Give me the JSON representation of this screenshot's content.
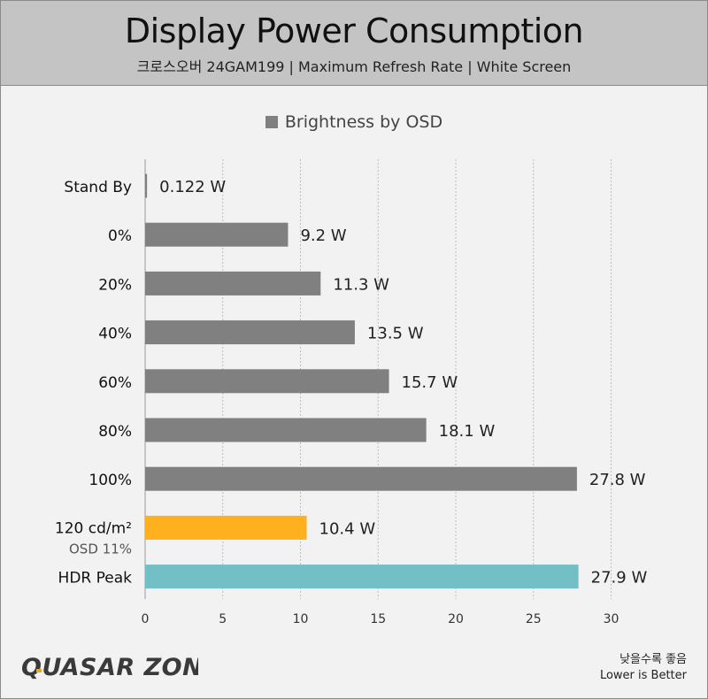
{
  "header": {
    "title": "Display Power Consumption",
    "subtitle": "크로스오버 24GAM199  |  Maximum Refresh Rate  |  White Screen"
  },
  "chart_data": {
    "type": "bar",
    "orientation": "horizontal",
    "title": "Display Power Consumption",
    "legend": [
      "Brightness by OSD"
    ],
    "legend_placement": "top-center",
    "xlim": [
      0,
      30
    ],
    "x_ticks": [
      "0",
      "5",
      "10",
      "15",
      "20",
      "25",
      "30"
    ],
    "grid": true,
    "unit": "W",
    "categories": [
      {
        "label": "Stand By",
        "sublabel": null,
        "value": 0.122,
        "value_label": "0.122 W",
        "color": "#808080"
      },
      {
        "label": "0%",
        "sublabel": null,
        "value": 9.2,
        "value_label": "9.2 W",
        "color": "#808080"
      },
      {
        "label": "20%",
        "sublabel": null,
        "value": 11.3,
        "value_label": "11.3 W",
        "color": "#808080"
      },
      {
        "label": "40%",
        "sublabel": null,
        "value": 13.5,
        "value_label": "13.5 W",
        "color": "#808080"
      },
      {
        "label": "60%",
        "sublabel": null,
        "value": 15.7,
        "value_label": "15.7 W",
        "color": "#808080"
      },
      {
        "label": "80%",
        "sublabel": null,
        "value": 18.1,
        "value_label": "18.1 W",
        "color": "#808080"
      },
      {
        "label": "100%",
        "sublabel": null,
        "value": 27.8,
        "value_label": "27.8 W",
        "color": "#808080"
      },
      {
        "label": "120 cd/m²",
        "sublabel": "OSD 11%",
        "value": 10.4,
        "value_label": "10.4 W",
        "color": "#feb01e"
      },
      {
        "label": "HDR Peak",
        "sublabel": null,
        "value": 27.9,
        "value_label": "27.9 W",
        "color": "#72bfc6"
      }
    ]
  },
  "footer": {
    "logo_text": "QUASAR ZONE",
    "note_ko": "낮을수록 좋음",
    "note_en": "Lower is Better"
  }
}
